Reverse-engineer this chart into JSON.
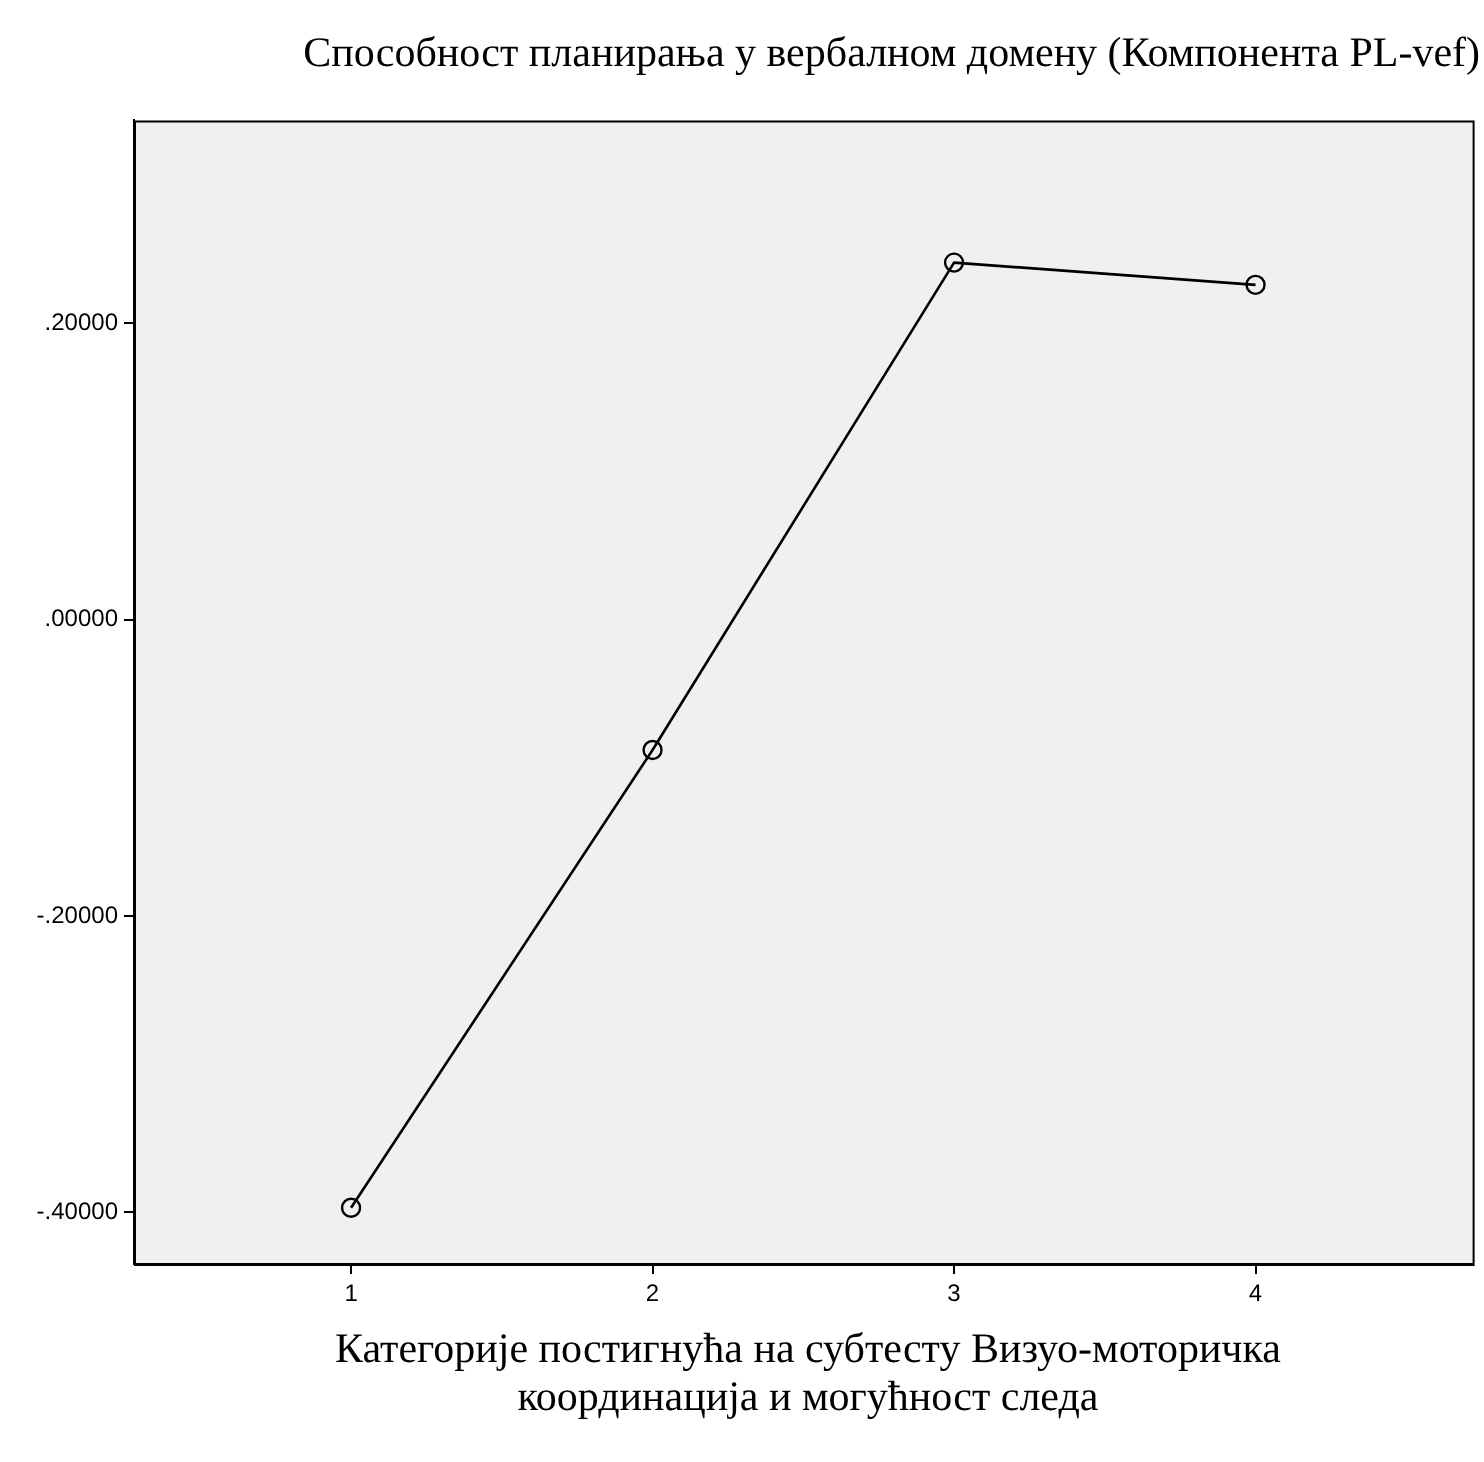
{
  "chart_data": {
    "type": "line",
    "title": "Способност планирања у вербалном домену (Компонента PL-vef)",
    "xlabel": "Категорије постигнућа на субтесту Визуо-моторичка координација и могућност следа",
    "x": [
      1,
      2,
      3,
      4
    ],
    "series": [
      {
        "color": "#000000",
        "values": [
          -0.397,
          -0.088,
          0.241,
          0.226
        ]
      }
    ],
    "xlim": [
      0.28,
      4.72
    ],
    "xticks": [
      1,
      2,
      3,
      4
    ],
    "ylim": [
      -0.435,
      0.337
    ],
    "yticks": [
      {
        "value": -0.4,
        "label": "-.40000"
      },
      {
        "value": -0.2,
        "label": "-.20000"
      },
      {
        "value": 0,
        "label": ".00000"
      },
      {
        "value": 0.2,
        "label": ".20000"
      }
    ],
    "marker": "circle",
    "line_style": "solid",
    "legend": false
  }
}
